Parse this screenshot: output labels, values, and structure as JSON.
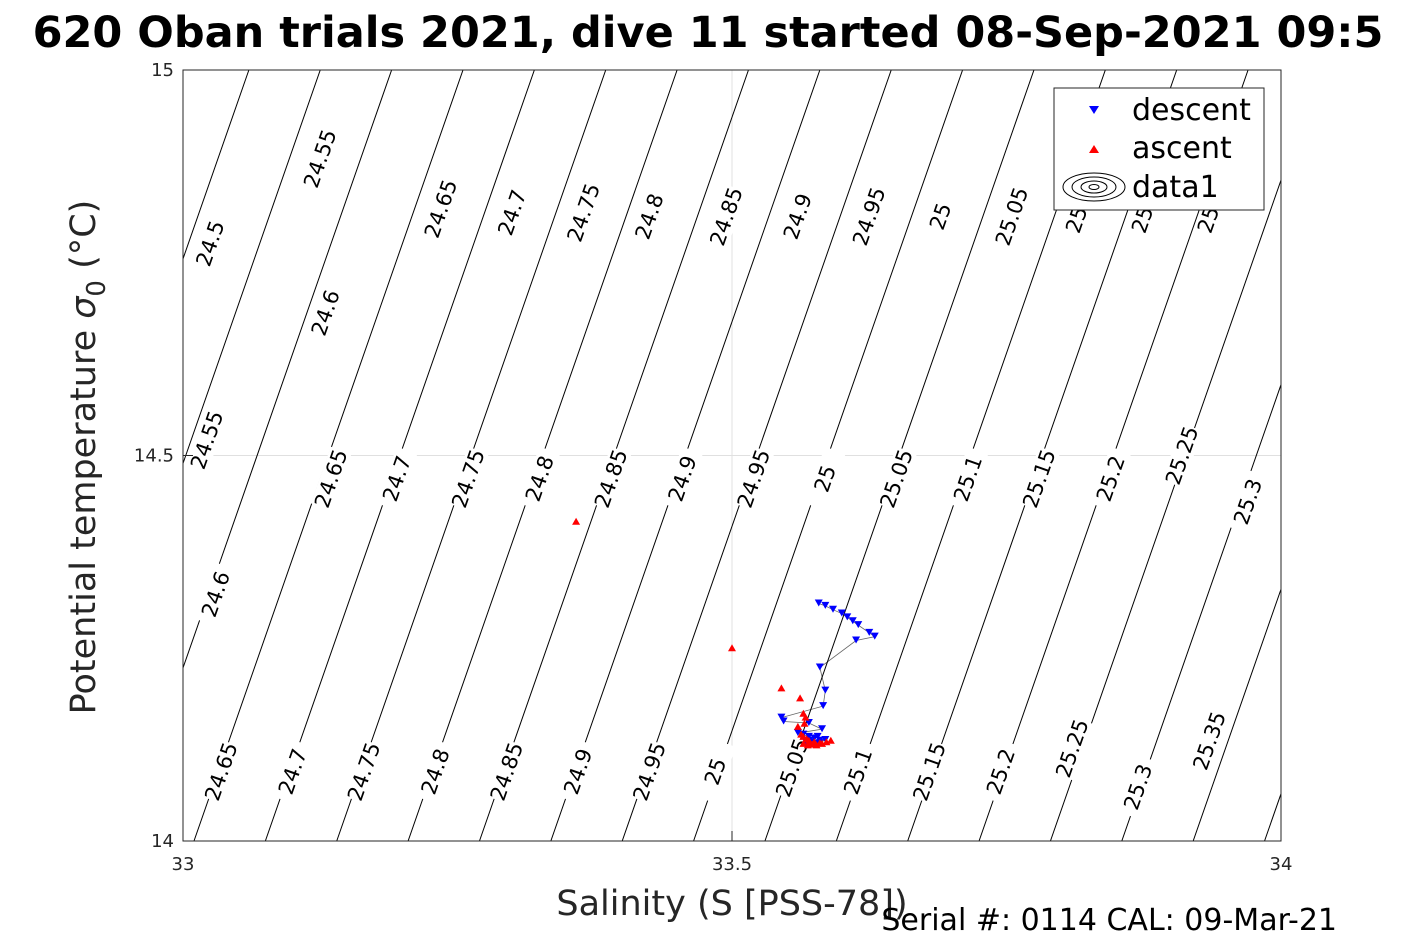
{
  "chart_data": {
    "type": "scatter",
    "title": "620 Oban trials 2021, dive 11 started 08-Sep-2021 09:5",
    "xlabel": "Salinity (S [PSS-78])",
    "ylabel_main": "Potential temperature ",
    "ylabel_sym": "σ",
    "ylabel_sub": "0",
    "ylabel_unit": " (°C)",
    "xlim": [
      33,
      34
    ],
    "ylim": [
      14,
      15
    ],
    "xticks": [
      33,
      33.5,
      34
    ],
    "xtick_labels": [
      "33",
      "33.5",
      "34"
    ],
    "yticks": [
      14,
      14.5,
      15
    ],
    "ytick_labels": [
      "14",
      "14.5",
      "15"
    ],
    "grid": true,
    "legend_position": "top-right",
    "footer": "Serial #: 0114  CAL: 09-Mar-21",
    "contour_labels": [
      {
        "text": "24.5",
        "s": 33.025,
        "t": 14.775
      },
      {
        "text": "24.55",
        "s": 33.125,
        "t": 14.885
      },
      {
        "text": "24.65",
        "s": 33.235,
        "t": 14.82
      },
      {
        "text": "24.7",
        "s": 33.3,
        "t": 14.815
      },
      {
        "text": "24.75",
        "s": 33.365,
        "t": 14.815
      },
      {
        "text": "24.8",
        "s": 33.425,
        "t": 14.81
      },
      {
        "text": "24.85",
        "s": 33.495,
        "t": 14.81
      },
      {
        "text": "24.9",
        "s": 33.56,
        "t": 14.81
      },
      {
        "text": "24.95",
        "s": 33.625,
        "t": 14.81
      },
      {
        "text": "25",
        "s": 33.69,
        "t": 14.81
      },
      {
        "text": "25.05",
        "s": 33.755,
        "t": 14.81
      },
      {
        "text": "25.",
        "s": 33.815,
        "t": 14.81
      },
      {
        "text": "25.",
        "s": 33.875,
        "t": 14.81
      },
      {
        "text": "25.",
        "s": 33.935,
        "t": 14.81
      },
      {
        "text": "24.6",
        "s": 33.13,
        "t": 14.685
      },
      {
        "text": "24.55",
        "s": 33.022,
        "t": 14.52
      },
      {
        "text": "24.65",
        "s": 33.135,
        "t": 14.47
      },
      {
        "text": "24.7",
        "s": 33.195,
        "t": 14.47
      },
      {
        "text": "24.75",
        "s": 33.26,
        "t": 14.47
      },
      {
        "text": "24.8",
        "s": 33.325,
        "t": 14.47
      },
      {
        "text": "24.85",
        "s": 33.39,
        "t": 14.47
      },
      {
        "text": "24.9",
        "s": 33.455,
        "t": 14.47
      },
      {
        "text": "24.95",
        "s": 33.52,
        "t": 14.47
      },
      {
        "text": "25",
        "s": 33.585,
        "t": 14.47
      },
      {
        "text": "25.05",
        "s": 33.65,
        "t": 14.47
      },
      {
        "text": "25.1",
        "s": 33.715,
        "t": 14.47
      },
      {
        "text": "25.15",
        "s": 33.78,
        "t": 14.47
      },
      {
        "text": "25.2",
        "s": 33.845,
        "t": 14.47
      },
      {
        "text": "25.25",
        "s": 33.91,
        "t": 14.5
      },
      {
        "text": "25.3",
        "s": 33.97,
        "t": 14.44
      },
      {
        "text": "24.6",
        "s": 33.03,
        "t": 14.32
      },
      {
        "text": "24.65",
        "s": 33.035,
        "t": 14.09
      },
      {
        "text": "24.7",
        "s": 33.1,
        "t": 14.09
      },
      {
        "text": "24.75",
        "s": 33.165,
        "t": 14.09
      },
      {
        "text": "24.8",
        "s": 33.23,
        "t": 14.09
      },
      {
        "text": "24.85",
        "s": 33.295,
        "t": 14.09
      },
      {
        "text": "24.9",
        "s": 33.36,
        "t": 14.09
      },
      {
        "text": "24.95",
        "s": 33.425,
        "t": 14.09
      },
      {
        "text": "25",
        "s": 33.485,
        "t": 14.09
      },
      {
        "text": "25.05",
        "s": 33.555,
        "t": 14.095
      },
      {
        "text": "25.1",
        "s": 33.615,
        "t": 14.09
      },
      {
        "text": "25.15",
        "s": 33.68,
        "t": 14.09
      },
      {
        "text": "25.2",
        "s": 33.745,
        "t": 14.09
      },
      {
        "text": "25.25",
        "s": 33.81,
        "t": 14.12
      },
      {
        "text": "25.3",
        "s": 33.87,
        "t": 14.07
      },
      {
        "text": "25.35",
        "s": 33.935,
        "t": 14.13
      }
    ],
    "series": [
      {
        "name": "descent",
        "marker": "triangle-down",
        "color": "#0000ff",
        "points": [
          [
            33.579,
            14.308
          ],
          [
            33.585,
            14.305
          ],
          [
            33.592,
            14.3
          ],
          [
            33.6,
            14.295
          ],
          [
            33.605,
            14.29
          ],
          [
            33.61,
            14.285
          ],
          [
            33.615,
            14.28
          ],
          [
            33.625,
            14.27
          ],
          [
            33.63,
            14.265
          ],
          [
            33.613,
            14.26
          ],
          [
            33.58,
            14.225
          ],
          [
            33.585,
            14.195
          ],
          [
            33.583,
            14.175
          ],
          [
            33.545,
            14.16
          ],
          [
            33.547,
            14.155
          ],
          [
            33.57,
            14.153
          ],
          [
            33.582,
            14.145
          ],
          [
            33.56,
            14.14
          ],
          [
            33.565,
            14.138
          ],
          [
            33.57,
            14.135
          ],
          [
            33.575,
            14.133
          ],
          [
            33.578,
            14.135
          ],
          [
            33.58,
            14.13
          ],
          [
            33.572,
            14.128
          ],
          [
            33.568,
            14.127
          ],
          [
            33.575,
            14.126
          ],
          [
            33.58,
            14.127
          ],
          [
            33.576,
            14.125
          ],
          [
            33.585,
            14.131
          ],
          [
            33.57,
            14.13
          ]
        ]
      },
      {
        "name": "ascent",
        "marker": "triangle-up",
        "color": "#ff0000",
        "points": [
          [
            33.358,
            14.414
          ],
          [
            33.5,
            14.25
          ],
          [
            33.545,
            14.198
          ],
          [
            33.562,
            14.185
          ],
          [
            33.565,
            14.165
          ],
          [
            33.567,
            14.16
          ],
          [
            33.566,
            14.152
          ],
          [
            33.56,
            14.148
          ],
          [
            33.563,
            14.138
          ],
          [
            33.565,
            14.135
          ],
          [
            33.568,
            14.132
          ],
          [
            33.57,
            14.13
          ],
          [
            33.575,
            14.128
          ],
          [
            33.565,
            14.126
          ],
          [
            33.571,
            14.126
          ],
          [
            33.58,
            14.127
          ],
          [
            33.586,
            14.128
          ],
          [
            33.59,
            14.13
          ],
          [
            33.573,
            14.125
          ],
          [
            33.569,
            14.124
          ],
          [
            33.577,
            14.124
          ],
          [
            33.582,
            14.126
          ]
        ]
      }
    ],
    "legend": [
      {
        "label": "descent",
        "marker": "triangle-down",
        "color": "#0000ff"
      },
      {
        "label": "ascent",
        "marker": "triangle-up",
        "color": "#ff0000"
      },
      {
        "label": "data1",
        "marker": "contour",
        "color": "#000000"
      }
    ]
  }
}
